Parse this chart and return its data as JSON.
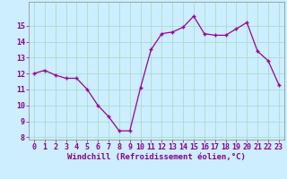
{
  "x": [
    0,
    1,
    2,
    3,
    4,
    5,
    6,
    7,
    8,
    9,
    10,
    11,
    12,
    13,
    14,
    15,
    16,
    17,
    18,
    19,
    20,
    21,
    22,
    23
  ],
  "y": [
    12.0,
    12.2,
    11.9,
    11.7,
    11.7,
    11.0,
    10.0,
    9.3,
    8.4,
    8.4,
    11.1,
    13.5,
    14.5,
    14.6,
    14.9,
    15.6,
    14.5,
    14.4,
    14.4,
    14.8,
    15.2,
    13.4,
    12.8,
    11.3
  ],
  "line_color": "#990099",
  "marker_color": "#990099",
  "bg_color": "#cceeff",
  "grid_color": "#aaddcc",
  "xlabel": "Windchill (Refroidissement éolien,°C)",
  "ylim": [
    8,
    16
  ],
  "xlim": [
    -0.5,
    23.5
  ],
  "yticks": [
    8,
    9,
    10,
    11,
    12,
    13,
    14,
    15
  ],
  "xticks": [
    0,
    1,
    2,
    3,
    4,
    5,
    6,
    7,
    8,
    9,
    10,
    11,
    12,
    13,
    14,
    15,
    16,
    17,
    18,
    19,
    20,
    21,
    22,
    23
  ],
  "tick_color": "#880088",
  "axis_label_color": "#880088",
  "tick_fontsize": 6.0,
  "xlabel_fontsize": 6.5
}
